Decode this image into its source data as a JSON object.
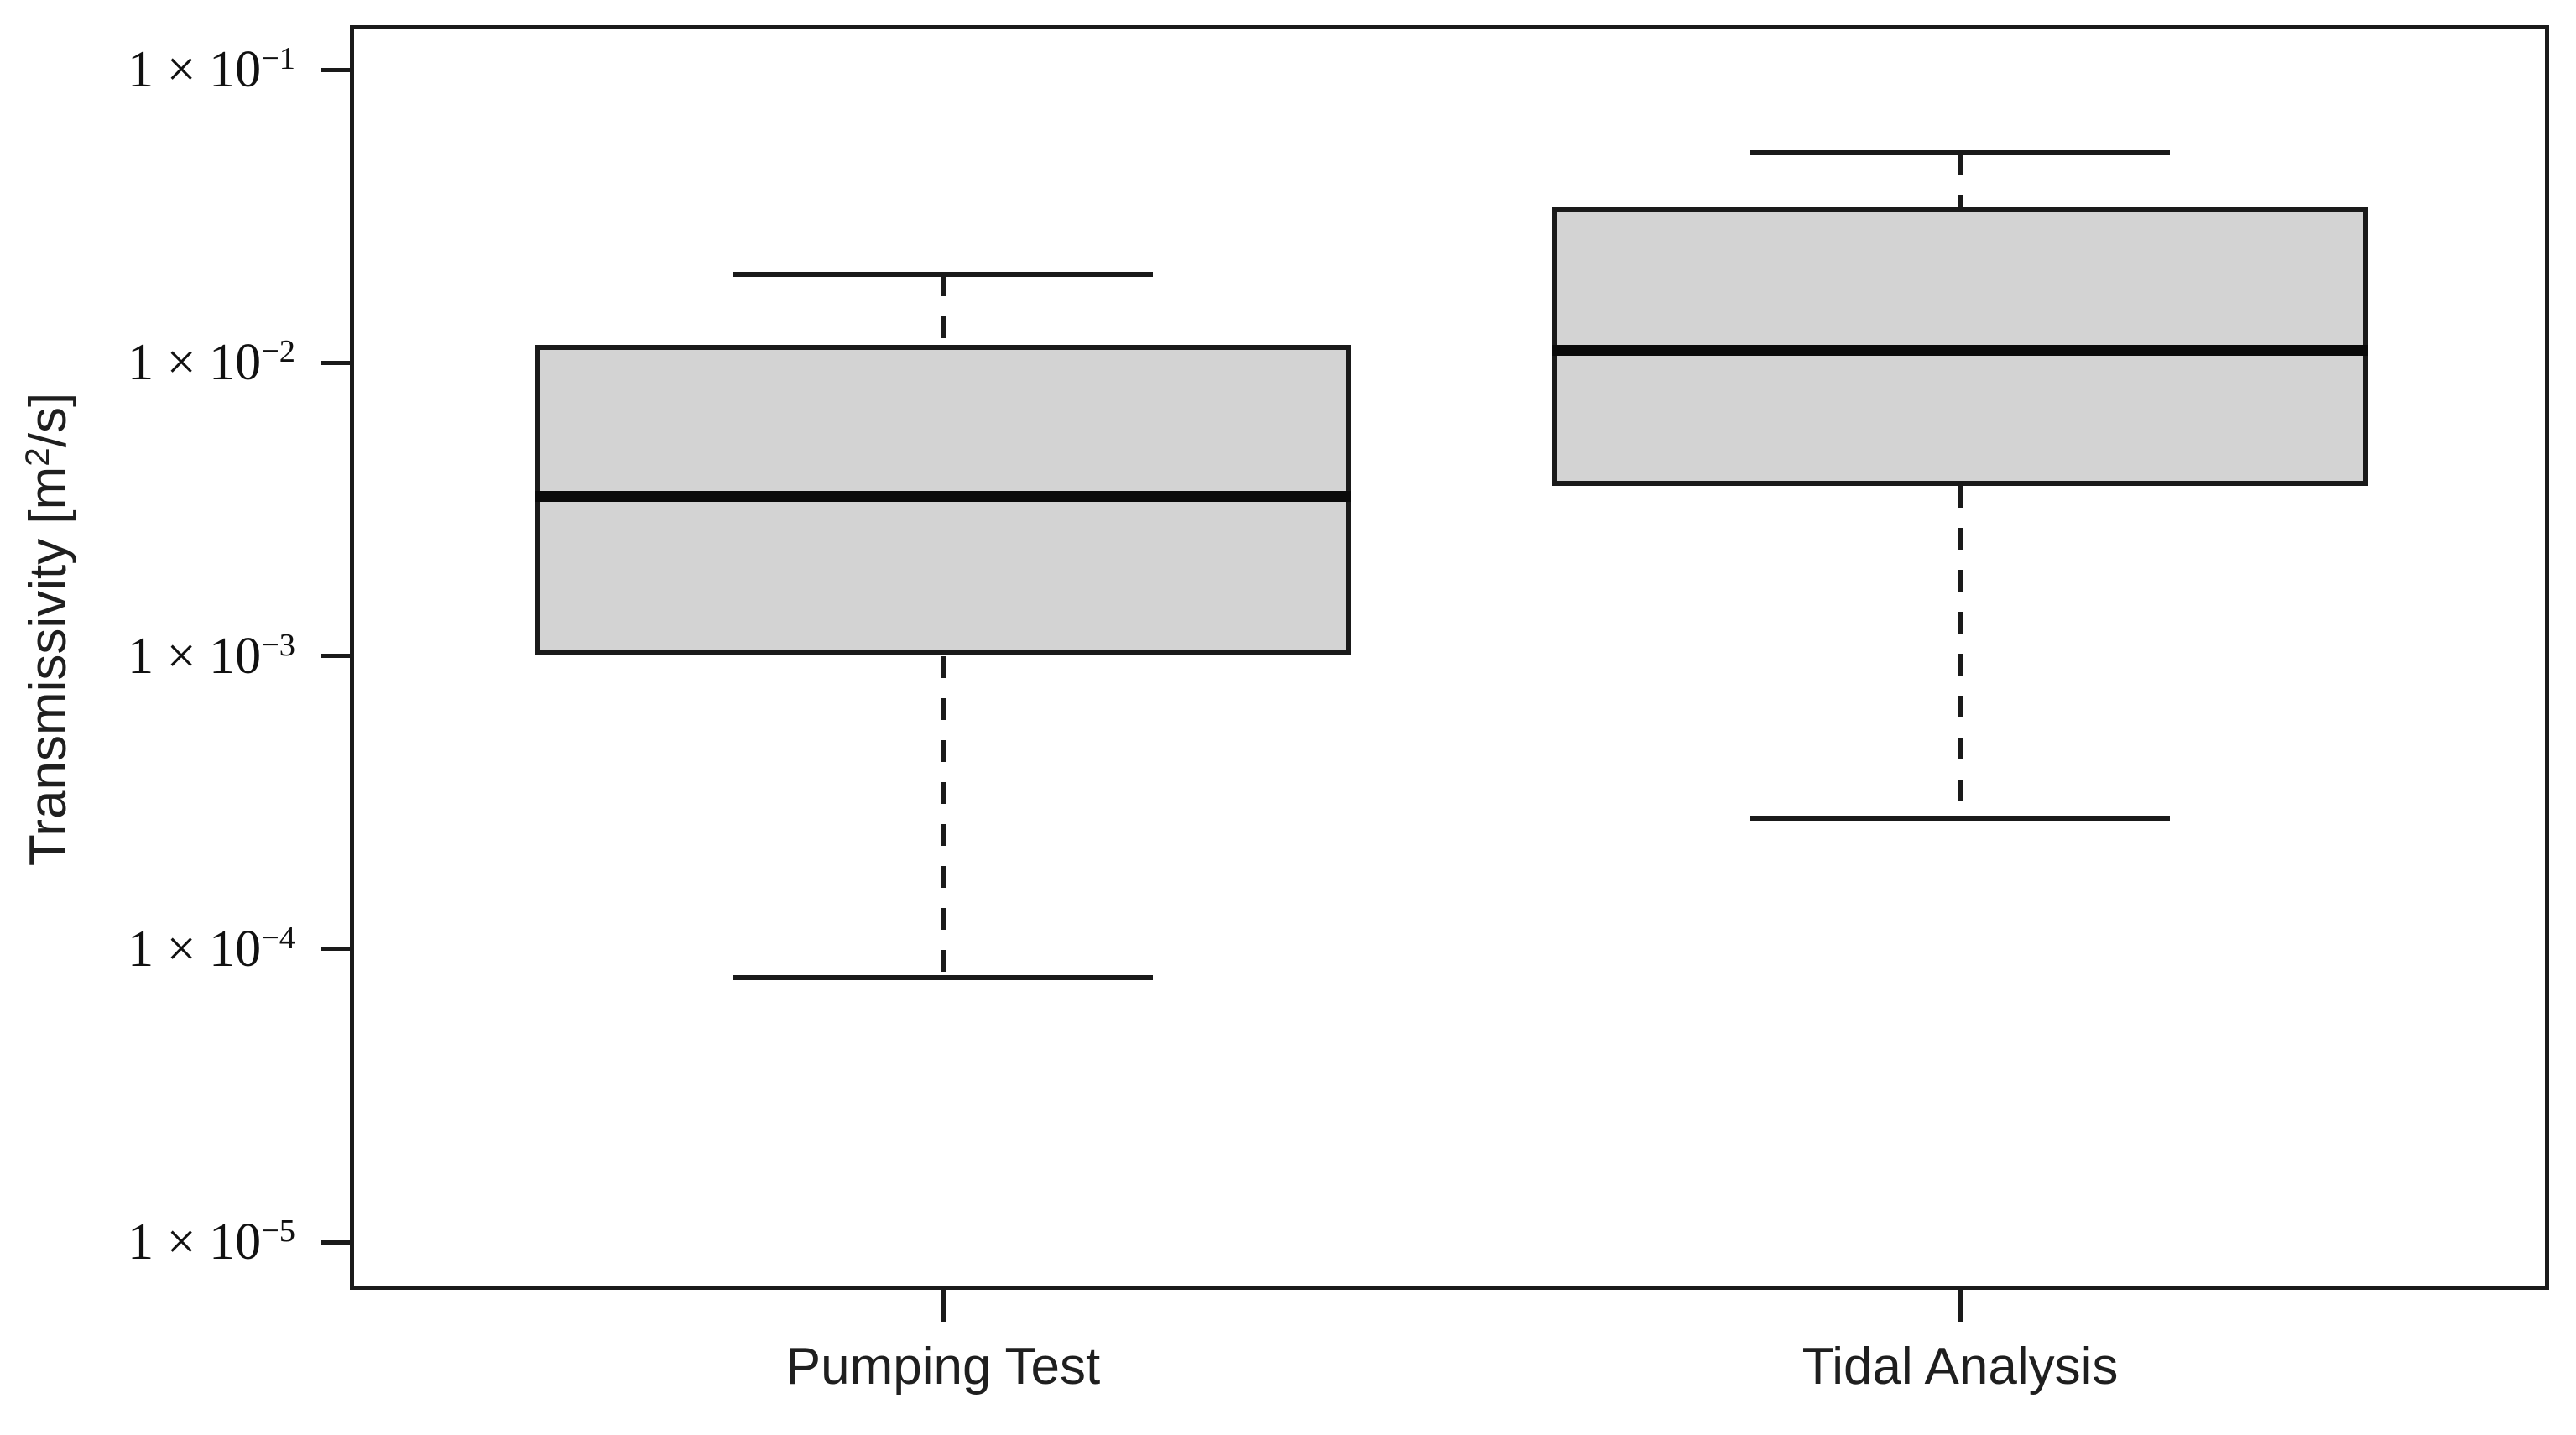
{
  "chart_data": {
    "type": "boxplot",
    "orientation": "vertical",
    "title": "",
    "xlabel": "",
    "ylabel": "Transmissivity [m²/s]",
    "ylabel_parts": {
      "prefix": "Transmissivity [m",
      "superscript": "2",
      "suffix": "/s]"
    },
    "y_scale": "log10",
    "ylim": [
      1e-05,
      0.1
    ],
    "grid": false,
    "legend": null,
    "y_ticks": [
      {
        "value": 0.1,
        "exponent": -1,
        "label": "1 × 10⁻¹",
        "base_text": "1 × 10",
        "exp_text": "−1"
      },
      {
        "value": 0.01,
        "exponent": -2,
        "label": "1 × 10⁻²",
        "base_text": "1 × 10",
        "exp_text": "−2"
      },
      {
        "value": 0.001,
        "exponent": -3,
        "label": "1 × 10⁻³",
        "base_text": "1 × 10",
        "exp_text": "−3"
      },
      {
        "value": 0.0001,
        "exponent": -4,
        "label": "1 × 10⁻⁴",
        "base_text": "1 × 10",
        "exp_text": "−4"
      },
      {
        "value": 1e-05,
        "exponent": -5,
        "label": "1 × 10⁻⁵",
        "base_text": "1 × 10",
        "exp_text": "−5"
      }
    ],
    "categories": [
      "Pumping Test",
      "Tidal Analysis"
    ],
    "series": [
      {
        "name": "Pumping Test",
        "whisker_low": 8e-05,
        "q1": 0.001,
        "median": 0.0035,
        "q3": 0.0115,
        "whisker_high": 0.02,
        "outliers": []
      },
      {
        "name": "Tidal Analysis",
        "whisker_low": 0.00028,
        "q1": 0.0038,
        "median": 0.011,
        "q3": 0.034,
        "whisker_high": 0.052,
        "outliers": []
      }
    ],
    "style": {
      "box_fill": "#d3d3d3",
      "line_color": "#1a1a1a",
      "median_color": "#0a0a0a",
      "background": "#ffffff",
      "text_color": "#1f1f1f"
    }
  }
}
